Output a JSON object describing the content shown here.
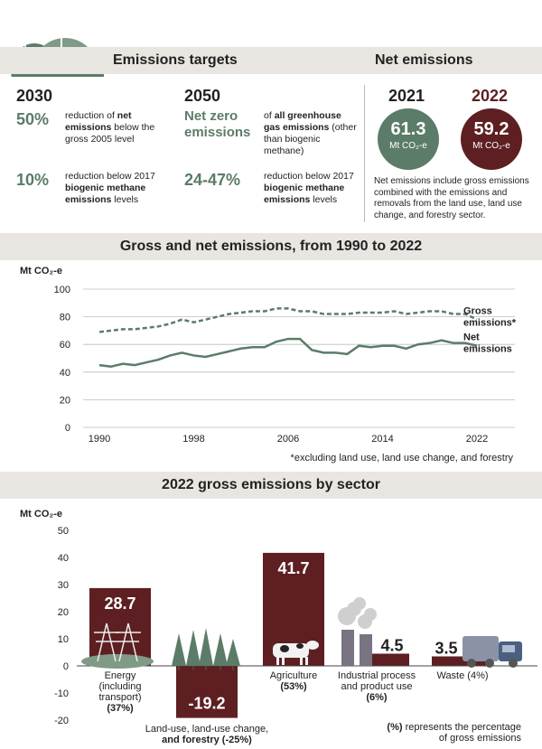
{
  "targets": {
    "heading": "Emissions targets",
    "y2030": {
      "year": "2030",
      "items": [
        {
          "value": "50%",
          "pre": "reduction of ",
          "bold": "net emissions",
          "post": " below the gross 2005 level"
        },
        {
          "value": "10%",
          "pre": "reduction below 2017 ",
          "bold": "biogenic methane emissions",
          "post": " levels"
        }
      ]
    },
    "y2050": {
      "year": "2050",
      "items": [
        {
          "value": "Net zero emissions",
          "pre": "of ",
          "bold": "all greenhouse gas emissions",
          "post": " (other than biogenic methane)"
        },
        {
          "value": "24-47%",
          "pre": "reduction below 2017 ",
          "bold": "biogenic methane emissions",
          "post": " levels"
        }
      ]
    }
  },
  "net": {
    "heading": "Net emissions",
    "y2021": {
      "year": "2021",
      "value": "61.3",
      "unit": "Mt CO₂-e"
    },
    "y2022": {
      "year": "2022",
      "value": "59.2",
      "unit": "Mt CO₂-e"
    },
    "note": "Net emissions include gross emissions combined with the emissions and removals from the land use, land use change, and forestry sector."
  },
  "colors": {
    "green": "#5b7c68",
    "maroon": "#5e1f22",
    "band": "#e9e6e2",
    "grey_dark": "#222222"
  },
  "chart_data": [
    {
      "type": "line",
      "title": "Gross and net emissions, from 1990 to 2022",
      "ylabel": "Mt CO₂-e",
      "ylim": [
        0,
        100
      ],
      "yticks": [
        0,
        20,
        40,
        60,
        80,
        100
      ],
      "xticks": [
        1990,
        1998,
        2006,
        2014,
        2022
      ],
      "footnote": "*excluding land use, land use change, and forestry",
      "x": [
        1990,
        1991,
        1992,
        1993,
        1994,
        1995,
        1996,
        1997,
        1998,
        1999,
        2000,
        2001,
        2002,
        2003,
        2004,
        2005,
        2006,
        2007,
        2008,
        2009,
        2010,
        2011,
        2012,
        2013,
        2014,
        2015,
        2016,
        2017,
        2018,
        2019,
        2020,
        2021,
        2022
      ],
      "series": [
        {
          "name": "Gross emissions*",
          "style": "dashed",
          "values": [
            69,
            70,
            71,
            71,
            72,
            73,
            75,
            78,
            76,
            78,
            80,
            82,
            83,
            84,
            84,
            86,
            86,
            84,
            84,
            82,
            82,
            82,
            83,
            83,
            83,
            84,
            82,
            83,
            84,
            84,
            82,
            82,
            78
          ]
        },
        {
          "name": "Net emissions",
          "style": "solid",
          "values": [
            45,
            44,
            46,
            45,
            47,
            49,
            52,
            54,
            52,
            51,
            53,
            55,
            57,
            58,
            58,
            62,
            64,
            64,
            56,
            54,
            54,
            53,
            59,
            58,
            59,
            59,
            57,
            60,
            61,
            63,
            61,
            61,
            59
          ]
        }
      ]
    },
    {
      "type": "bar",
      "title": "2022 gross emissions by sector",
      "ylabel": "Mt CO₂-e",
      "ylim": [
        -20,
        50
      ],
      "yticks": [
        -20,
        -10,
        0,
        10,
        20,
        30,
        40,
        50
      ],
      "categories": [
        "Energy (including transport) (37%)",
        "Land-use, land-use change, and forestry (-25%)",
        "Agriculture (53%)",
        "Industrial process and product use (6%)",
        "Waste (4%)"
      ],
      "values": [
        28.7,
        -19.2,
        41.7,
        4.5,
        3.5
      ],
      "value_labels": [
        "28.7",
        "-19.2",
        "41.7",
        "4.5",
        "3.5"
      ],
      "label_lines": [
        [
          "Energy",
          "(including",
          "transport)",
          "(37%)"
        ],
        [
          "Land-use, land-use change,",
          "and forestry (-25%)"
        ],
        [
          "Agriculture",
          "(53%)"
        ],
        [
          "Industrial process",
          "and product use",
          "(6%)"
        ],
        [
          "Waste (4%)"
        ]
      ],
      "icons": [
        "pylon-icon",
        "forest-icon",
        "cow-icon",
        "factory-icon",
        "rubbish-truck-icon"
      ],
      "footnote_bold": "(%)",
      "footnote": " represents the percentage of gross emissions"
    }
  ]
}
